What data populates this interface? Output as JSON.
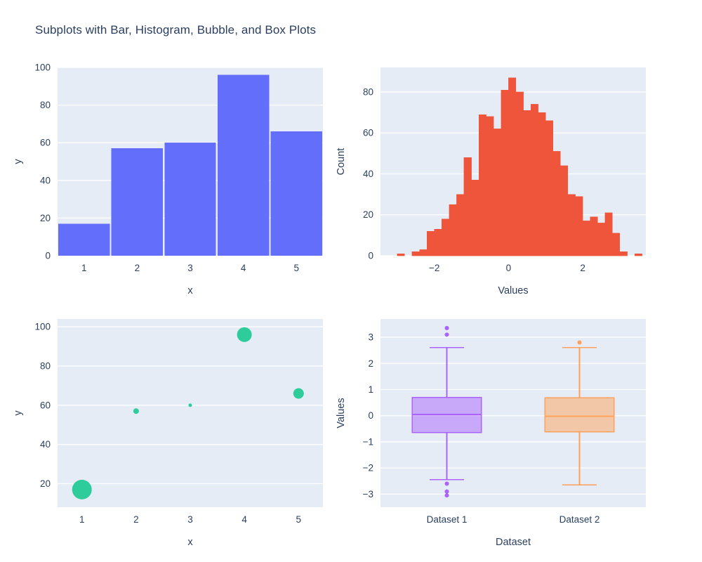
{
  "page": {
    "title": "Subplots with Bar, Histogram, Bubble, and Box Plots",
    "background": "#ffffff",
    "plot_bg": "#e5ecf6",
    "grid_color": "#ffffff",
    "text_color": "#2a3f5f"
  },
  "chart_data": [
    {
      "id": "bar",
      "type": "bar",
      "subplot": "top-left",
      "xlabel": "x",
      "ylabel": "y",
      "categories": [
        1,
        2,
        3,
        4,
        5
      ],
      "values": [
        17,
        57,
        60,
        96,
        66
      ],
      "color": "#636efa",
      "xlim": [
        0.5,
        5.5
      ],
      "xticks": [
        1,
        2,
        3,
        4,
        5
      ],
      "ylim": [
        0,
        100
      ],
      "yticks": [
        0,
        20,
        40,
        60,
        80,
        100
      ],
      "grid": "horizontal",
      "legend": "none"
    },
    {
      "id": "histogram",
      "type": "histogram",
      "subplot": "top-right",
      "xlabel": "Values",
      "ylabel": "Count",
      "bin_start": -3.2,
      "bin_width": 0.2,
      "counts": [
        0,
        1,
        0,
        2,
        3,
        12,
        13,
        18,
        25,
        30,
        48,
        37,
        69,
        68,
        62,
        81,
        87,
        80,
        71,
        74,
        70,
        66,
        51,
        44,
        30,
        29,
        17,
        19,
        16,
        21,
        11,
        2,
        0,
        1
      ],
      "color": "#ef553b",
      "xlim": [
        -3.45,
        3.7
      ],
      "xticks": [
        -2,
        0,
        2
      ],
      "ylim": [
        0,
        92
      ],
      "yticks": [
        0,
        20,
        40,
        60,
        80
      ],
      "grid": "horizontal",
      "legend": "none"
    },
    {
      "id": "bubble",
      "type": "scatter",
      "subplot": "bottom-left",
      "xlabel": "x",
      "ylabel": "y",
      "x": [
        1,
        2,
        3,
        4,
        5
      ],
      "y": [
        17,
        57,
        60,
        96,
        66
      ],
      "marker_sizes": [
        28,
        8,
        5,
        21,
        15
      ],
      "color": "#2ecc9b",
      "xlim": [
        0.55,
        5.45
      ],
      "xticks": [
        1,
        2,
        3,
        4,
        5
      ],
      "ylim": [
        8,
        104
      ],
      "yticks": [
        20,
        40,
        60,
        80,
        100
      ],
      "grid": "horizontal",
      "legend": "none"
    },
    {
      "id": "box",
      "type": "box",
      "subplot": "bottom-right",
      "xlabel": "Dataset",
      "ylabel": "Values",
      "categories": [
        "Dataset 1",
        "Dataset 2"
      ],
      "series": [
        {
          "name": "Dataset 1",
          "color": "#ab63fa",
          "lower": -2.45,
          "q1": -0.65,
          "median": 0.05,
          "q3": 0.7,
          "upper": 2.6,
          "outliers": [
            3.35,
            3.1,
            -2.6,
            -2.9,
            -3.05
          ]
        },
        {
          "name": "Dataset 2",
          "color": "#ffa15a",
          "lower": -2.65,
          "q1": -0.62,
          "median": -0.02,
          "q3": 0.68,
          "upper": 2.6,
          "outliers": [
            2.8
          ]
        }
      ],
      "ylim": [
        -3.5,
        3.7
      ],
      "yticks": [
        -3,
        -2,
        -1,
        0,
        1,
        2,
        3
      ],
      "grid": "horizontal",
      "legend": "none"
    }
  ]
}
